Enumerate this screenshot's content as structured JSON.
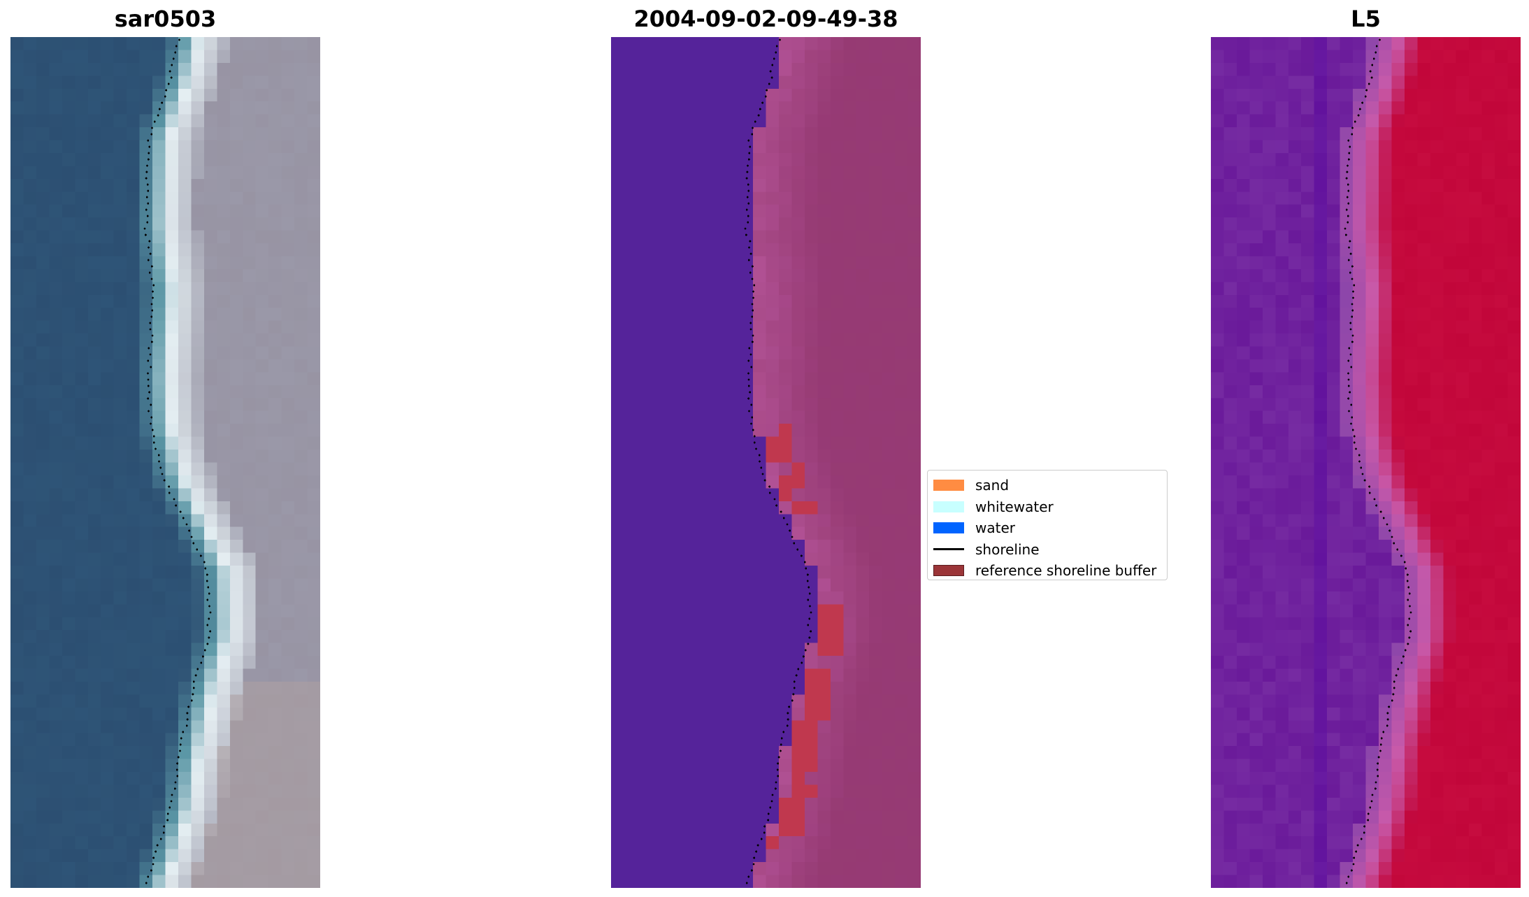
{
  "panels": [
    {
      "title": "sar0503",
      "kind": "rgb"
    },
    {
      "title": "2004-09-02-09-49-38",
      "kind": "classified"
    },
    {
      "title": "L5",
      "kind": "index"
    }
  ],
  "legend": {
    "items": [
      {
        "label": "sand",
        "type": "patch",
        "color": "#ff8c42"
      },
      {
        "label": "whitewater",
        "type": "patch",
        "color": "#c8ffff"
      },
      {
        "label": "water",
        "type": "patch",
        "color": "#0064ff"
      },
      {
        "label": "shoreline",
        "type": "line",
        "color": "#000000"
      },
      {
        "label": "reference shoreline buffer",
        "type": "patch",
        "color": "#9b3538"
      }
    ]
  },
  "colors": {
    "water_rgb": "#2c4f72",
    "beach_rgb": "#9a98a8",
    "classified_water": "#55239a",
    "classified_land": "#963a75",
    "classified_buffer": "#c0384e",
    "index_low": "#6a1a9a",
    "index_high": "#c2063a",
    "shoreline": "#000000"
  }
}
